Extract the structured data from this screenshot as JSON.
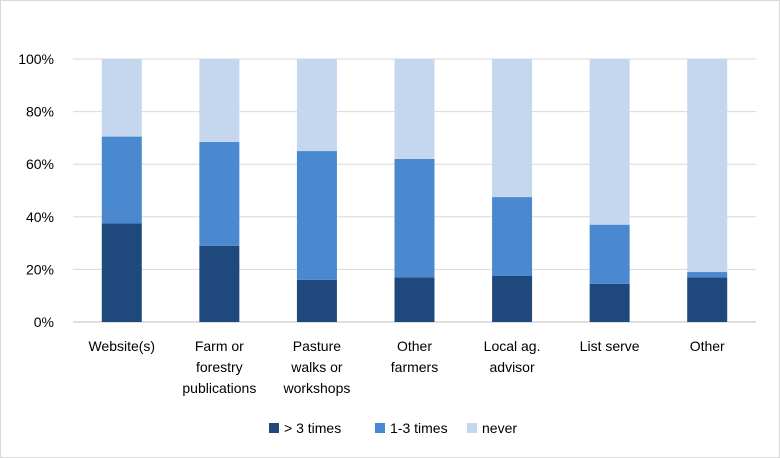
{
  "chart_data": {
    "type": "bar",
    "stacked": true,
    "percent": true,
    "categories": [
      [
        "Website(s)"
      ],
      [
        "Farm or",
        "forestry",
        "publications"
      ],
      [
        "Pasture",
        "walks or",
        "workshops"
      ],
      [
        "Other",
        "farmers"
      ],
      [
        "Local ag.",
        "advisor"
      ],
      [
        "List serve"
      ],
      [
        "Other"
      ]
    ],
    "series": [
      {
        "name": "> 3 times",
        "color": "#1F497D",
        "values": [
          37.5,
          29,
          16,
          17,
          17.5,
          14.5,
          17
        ]
      },
      {
        "name": "1-3 times",
        "color": "#4A89D0",
        "values": [
          33,
          39.5,
          49,
          45,
          30,
          22.5,
          2
        ]
      },
      {
        "name": "never",
        "color": "#C5D7EF",
        "values": [
          29.5,
          31.5,
          35,
          38,
          52.5,
          63,
          81
        ]
      }
    ],
    "ylim": [
      0,
      100
    ],
    "yticks": [
      "0%",
      "20%",
      "40%",
      "60%",
      "80%",
      "100%"
    ],
    "gridlines": true,
    "legend_position": "bottom"
  }
}
